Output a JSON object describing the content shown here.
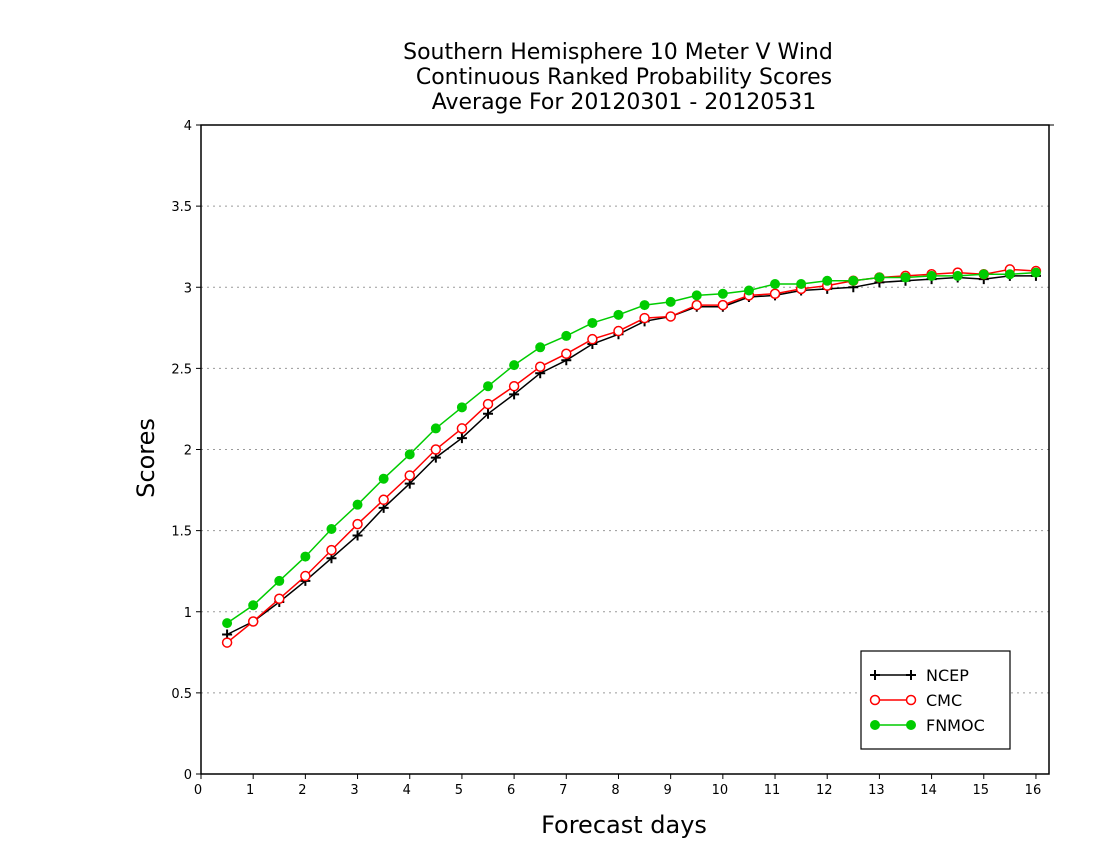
{
  "chart_data": {
    "type": "line",
    "title": [
      "Southern Hemisphere 10 Meter V Wind",
      "Continuous Ranked Probability Scores",
      "Average For 20120301 - 20120531"
    ],
    "xlabel": "Forecast days",
    "ylabel": "Scores",
    "xlim": [
      0,
      16.25
    ],
    "ylim": [
      0,
      4
    ],
    "xticks": [
      0,
      1,
      2,
      3,
      4,
      5,
      6,
      7,
      8,
      9,
      10,
      11,
      12,
      13,
      14,
      15,
      16
    ],
    "yticks": [
      0,
      0.5,
      1,
      1.5,
      2,
      2.5,
      3,
      3.5,
      4
    ],
    "ytick_labels": [
      "0",
      "0.5",
      "1",
      "1.5",
      "2",
      "2.5",
      "3",
      "3.5",
      "4"
    ],
    "grid": "horizontal dotted",
    "legend_position": "bottom-right",
    "x": [
      0.5,
      1,
      1.5,
      2,
      2.5,
      3,
      3.5,
      4,
      4.5,
      5,
      5.5,
      6,
      6.5,
      7,
      7.5,
      8,
      8.5,
      9,
      9.5,
      10,
      10.5,
      11,
      11.5,
      12,
      12.5,
      13,
      13.5,
      14,
      14.5,
      15,
      15.5,
      16
    ],
    "series": [
      {
        "name": "NCEP",
        "color": "#000000",
        "marker": "plus",
        "values": [
          0.86,
          0.94,
          1.06,
          1.19,
          1.33,
          1.47,
          1.64,
          1.79,
          1.95,
          2.07,
          2.22,
          2.34,
          2.47,
          2.55,
          2.65,
          2.71,
          2.79,
          2.82,
          2.88,
          2.88,
          2.94,
          2.95,
          2.98,
          2.99,
          3.0,
          3.03,
          3.04,
          3.05,
          3.06,
          3.05,
          3.07,
          3.07
        ]
      },
      {
        "name": "CMC",
        "color": "#ff0000",
        "marker": "open-circle",
        "values": [
          0.81,
          0.94,
          1.08,
          1.22,
          1.38,
          1.54,
          1.69,
          1.84,
          2.0,
          2.13,
          2.28,
          2.39,
          2.51,
          2.59,
          2.68,
          2.73,
          2.81,
          2.82,
          2.89,
          2.89,
          2.95,
          2.96,
          2.99,
          3.01,
          3.04,
          3.06,
          3.07,
          3.08,
          3.09,
          3.08,
          3.11,
          3.1
        ]
      },
      {
        "name": "FNMOC",
        "color": "#00cc00",
        "marker": "filled-circle",
        "values": [
          0.93,
          1.04,
          1.19,
          1.34,
          1.51,
          1.66,
          1.82,
          1.97,
          2.13,
          2.26,
          2.39,
          2.52,
          2.63,
          2.7,
          2.78,
          2.83,
          2.89,
          2.91,
          2.95,
          2.96,
          2.98,
          3.02,
          3.02,
          3.04,
          3.04,
          3.06,
          3.06,
          3.07,
          3.07,
          3.08,
          3.08,
          3.09
        ]
      }
    ]
  }
}
